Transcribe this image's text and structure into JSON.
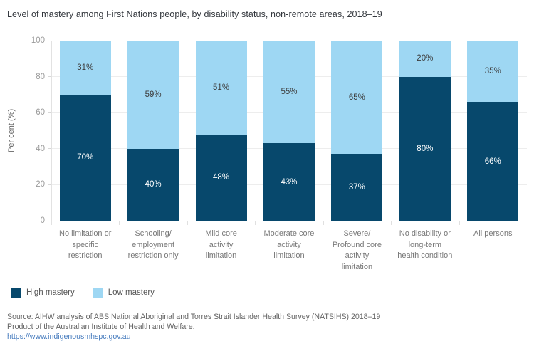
{
  "title": "Level of mastery among First Nations people, by disability status, non-remote areas, 2018–19",
  "chart_data": {
    "type": "bar",
    "stacked": true,
    "title": "Level of mastery among First Nations people, by disability status, non-remote areas, 2018–19",
    "ylabel": "Per cent (%)",
    "ylim": [
      0,
      100
    ],
    "yticks": [
      0,
      20,
      40,
      60,
      80,
      100
    ],
    "grid": true,
    "legend_position": "bottom-left",
    "categories": [
      "No limitation or\nspecific\nrestriction",
      "Schooling/\nemployment\nrestriction only",
      "Mild core\nactivity\nlimitation",
      "Moderate core\nactivity\nlimitation",
      "Severe/\nProfound core\nactivity\nlimitation",
      "No disability or\nlong-term\nhealth condition",
      "All persons"
    ],
    "series": [
      {
        "name": "High mastery",
        "color": "#07486C",
        "label_color": "#ffffff",
        "values": [
          70,
          40,
          48,
          43,
          37,
          80,
          66
        ],
        "labels": [
          "70%",
          "40%",
          "48%",
          "43%",
          "37%",
          "80%",
          "66%"
        ]
      },
      {
        "name": "Low mastery",
        "color": "#9ED7F3",
        "label_color": "#3d3d3d",
        "values": [
          31,
          59,
          51,
          55,
          65,
          20,
          35
        ],
        "labels": [
          "31%",
          "59%",
          "51%",
          "55%",
          "65%",
          "20%",
          "35%"
        ]
      }
    ]
  },
  "footer": {
    "source_line1": "Source: AIHW analysis of ABS National Aboriginal and Torres Strait Islander Health Survey (NATSIHS) 2018–19",
    "source_line2": "Product of the Australian Institute of Health and Welfare.",
    "link": "https://www.indigenousmhspc.gov.au"
  },
  "colors": {
    "high_mastery": "#07486C",
    "low_mastery": "#9ED7F3",
    "link": "#4a7ebf",
    "gridline": "#ededed"
  }
}
